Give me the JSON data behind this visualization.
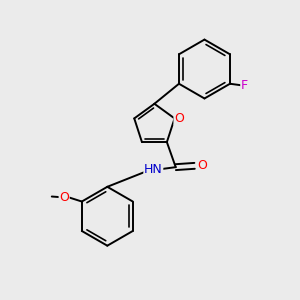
{
  "background_color": "#ebebeb",
  "bond_color": "#000000",
  "atom_colors": {
    "O": "#ff0000",
    "N": "#0000cc",
    "F": "#cc00cc",
    "H": "#666666",
    "C": "#000000"
  },
  "figsize": [
    3.0,
    3.0
  ],
  "dpi": 100
}
